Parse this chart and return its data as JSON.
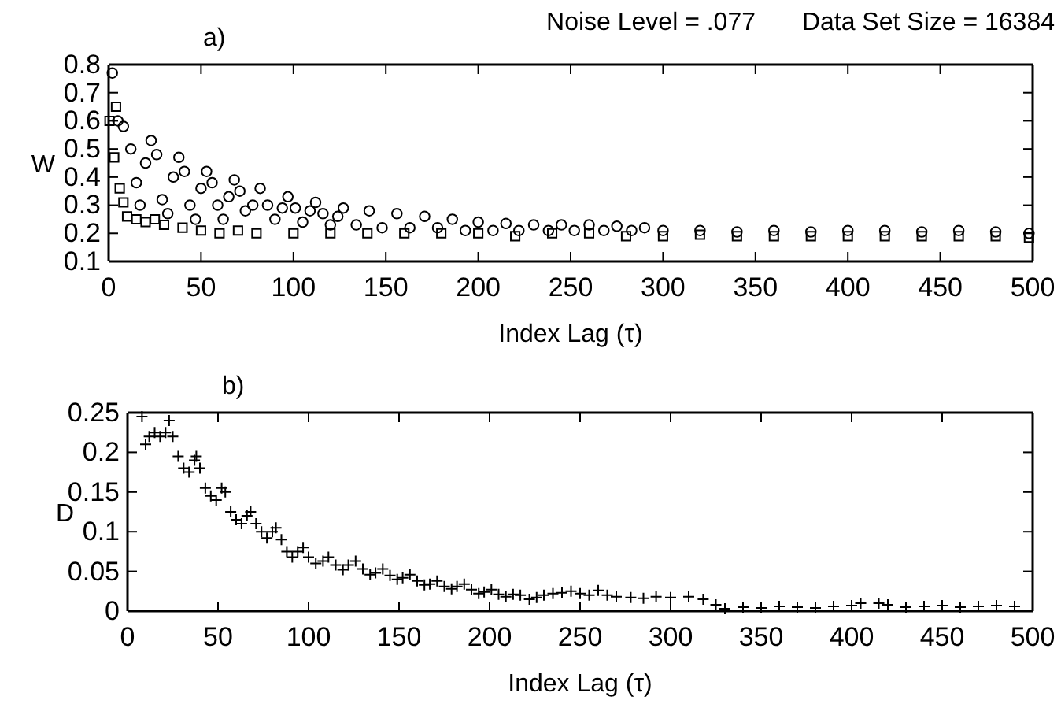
{
  "chart_data": [
    {
      "type": "scatter",
      "title": "a)",
      "annotations": [
        "Noise Level = .077",
        "Data Set Size = 16384"
      ],
      "xlabel": "Index Lag (τ)",
      "ylabel": "W",
      "xlim": [
        0,
        500
      ],
      "xticks": [
        0,
        50,
        100,
        150,
        200,
        250,
        300,
        350,
        400,
        450,
        500
      ],
      "ylim": [
        0.1,
        0.8
      ],
      "yticks": [
        0.1,
        0.2,
        0.3,
        0.4,
        0.5,
        0.6,
        0.7,
        0.8
      ],
      "grid": false,
      "series": [
        {
          "color": "#000000",
          "marker": "circle",
          "x": [
            2,
            5,
            8,
            12,
            15,
            17,
            20,
            23,
            26,
            29,
            32,
            35,
            38,
            41,
            44,
            47,
            50,
            53,
            56,
            59,
            62,
            65,
            68,
            71,
            74,
            78,
            82,
            86,
            90,
            94,
            97,
            101,
            105,
            109,
            112,
            116,
            120,
            124,
            127,
            134,
            141,
            148,
            156,
            163,
            171,
            178,
            186,
            193,
            200,
            208,
            215,
            222,
            230,
            238,
            245,
            252,
            260,
            268,
            275,
            283,
            290,
            300,
            320,
            340,
            360,
            380,
            400,
            420,
            440,
            460,
            480,
            498
          ],
          "values": [
            0.77,
            0.6,
            0.58,
            0.5,
            0.38,
            0.3,
            0.45,
            0.53,
            0.48,
            0.32,
            0.27,
            0.4,
            0.47,
            0.42,
            0.3,
            0.25,
            0.36,
            0.42,
            0.38,
            0.3,
            0.25,
            0.33,
            0.39,
            0.35,
            0.28,
            0.3,
            0.36,
            0.3,
            0.25,
            0.29,
            0.33,
            0.29,
            0.24,
            0.28,
            0.31,
            0.27,
            0.23,
            0.26,
            0.29,
            0.23,
            0.28,
            0.22,
            0.27,
            0.22,
            0.26,
            0.22,
            0.25,
            0.21,
            0.24,
            0.21,
            0.235,
            0.21,
            0.23,
            0.21,
            0.23,
            0.21,
            0.23,
            0.21,
            0.225,
            0.21,
            0.22,
            0.21,
            0.21,
            0.205,
            0.21,
            0.205,
            0.21,
            0.21,
            0.205,
            0.21,
            0.205,
            0.2
          ]
        },
        {
          "color": "#000000",
          "marker": "square",
          "x": [
            0.5,
            3,
            4,
            6,
            8,
            10,
            15,
            20,
            25,
            30,
            40,
            50,
            60,
            70,
            80,
            100,
            120,
            140,
            160,
            180,
            200,
            220,
            240,
            260,
            280,
            300,
            320,
            340,
            360,
            380,
            400,
            420,
            440,
            460,
            480,
            498
          ],
          "values": [
            0.6,
            0.47,
            0.65,
            0.36,
            0.31,
            0.26,
            0.25,
            0.24,
            0.25,
            0.23,
            0.22,
            0.21,
            0.2,
            0.21,
            0.2,
            0.2,
            0.2,
            0.2,
            0.2,
            0.2,
            0.2,
            0.19,
            0.2,
            0.2,
            0.19,
            0.19,
            0.195,
            0.19,
            0.19,
            0.19,
            0.19,
            0.19,
            0.19,
            0.19,
            0.19,
            0.185
          ]
        }
      ]
    },
    {
      "type": "scatter",
      "title": "b)",
      "xlabel": "Index Lag (τ)",
      "ylabel": "D",
      "xlim": [
        0,
        500
      ],
      "xticks": [
        0,
        50,
        100,
        150,
        200,
        250,
        300,
        350,
        400,
        450,
        500
      ],
      "ylim": [
        0,
        0.25
      ],
      "yticks": [
        0,
        0.05,
        0.1,
        0.15,
        0.2,
        0.25
      ],
      "grid": false,
      "series": [
        {
          "color": "#000000",
          "marker": "cross",
          "x": [
            8,
            10,
            12,
            15,
            18,
            21,
            23,
            25,
            28,
            31,
            34,
            37,
            38,
            40,
            43,
            46,
            49,
            52,
            54,
            57,
            60,
            63,
            66,
            68,
            71,
            74,
            77,
            80,
            82,
            85,
            88,
            91,
            94,
            97,
            100,
            104,
            108,
            111,
            115,
            119,
            122,
            126,
            130,
            134,
            137,
            141,
            145,
            149,
            152,
            156,
            160,
            164,
            167,
            171,
            175,
            179,
            182,
            186,
            190,
            194,
            197,
            201,
            205,
            209,
            213,
            217,
            222,
            226,
            230,
            235,
            240,
            245,
            250,
            255,
            260,
            265,
            270,
            278,
            285,
            292,
            300,
            310,
            318,
            325,
            330,
            340,
            350,
            360,
            370,
            380,
            390,
            400,
            405,
            415,
            420,
            430,
            440,
            450,
            460,
            470,
            480,
            490
          ],
          "values": [
            0.245,
            0.21,
            0.22,
            0.225,
            0.22,
            0.225,
            0.24,
            0.22,
            0.195,
            0.18,
            0.175,
            0.19,
            0.195,
            0.18,
            0.155,
            0.145,
            0.14,
            0.155,
            0.15,
            0.125,
            0.115,
            0.11,
            0.12,
            0.125,
            0.11,
            0.1,
            0.092,
            0.1,
            0.105,
            0.09,
            0.075,
            0.068,
            0.075,
            0.08,
            0.068,
            0.06,
            0.063,
            0.068,
            0.058,
            0.052,
            0.058,
            0.063,
            0.053,
            0.046,
            0.048,
            0.053,
            0.045,
            0.04,
            0.042,
            0.046,
            0.038,
            0.033,
            0.034,
            0.038,
            0.031,
            0.028,
            0.031,
            0.034,
            0.027,
            0.022,
            0.024,
            0.027,
            0.021,
            0.018,
            0.021,
            0.02,
            0.015,
            0.017,
            0.02,
            0.022,
            0.023,
            0.025,
            0.022,
            0.02,
            0.026,
            0.02,
            0.018,
            0.017,
            0.016,
            0.018,
            0.017,
            0.018,
            0.015,
            0.008,
            0.003,
            0.005,
            0.004,
            0.006,
            0.005,
            0.004,
            0.006,
            0.007,
            0.01,
            0.01,
            0.008,
            0.005,
            0.006,
            0.007,
            0.005,
            0.006,
            0.007,
            0.006
          ]
        }
      ]
    }
  ]
}
